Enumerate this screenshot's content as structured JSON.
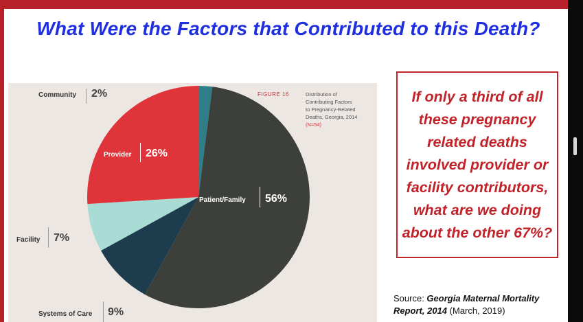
{
  "title": "What Were the Factors that Contributed to this Death?",
  "figure": {
    "number_label": "FIGURE 16",
    "caption_lines": [
      "Distribution of",
      "Contributing Factors",
      "to Pregnancy-Related",
      "Deaths, Georgia, 2014"
    ],
    "n_label": "(N=54)"
  },
  "chart_data": {
    "type": "pie",
    "slices": [
      {
        "label": "Community",
        "value": 2,
        "display": "2%",
        "color": "#2f7d86"
      },
      {
        "label": "Patient/Family",
        "value": 56,
        "display": "56%",
        "color": "#3d3f3b"
      },
      {
        "label": "Systems of Care",
        "value": 9,
        "display": "9%",
        "color": "#1d3d4f"
      },
      {
        "label": "Facility",
        "value": 7,
        "display": "7%",
        "color": "#a8dcd4"
      },
      {
        "label": "Provider",
        "value": 26,
        "display": "26%",
        "color": "#e0343b"
      }
    ]
  },
  "callout": {
    "text": "If only a third of all these pregnancy related deaths involved provider or facility contributors, what are we doing about the other 67%?"
  },
  "source": {
    "prefix": "Source: ",
    "report": "Georgia Maternal Mortality Report, 2014",
    "suffix": " (March, 2019)"
  },
  "colors": {
    "title": "#1f2fe0",
    "accent_red": "#c0232a",
    "frame_red": "#b8202a"
  }
}
